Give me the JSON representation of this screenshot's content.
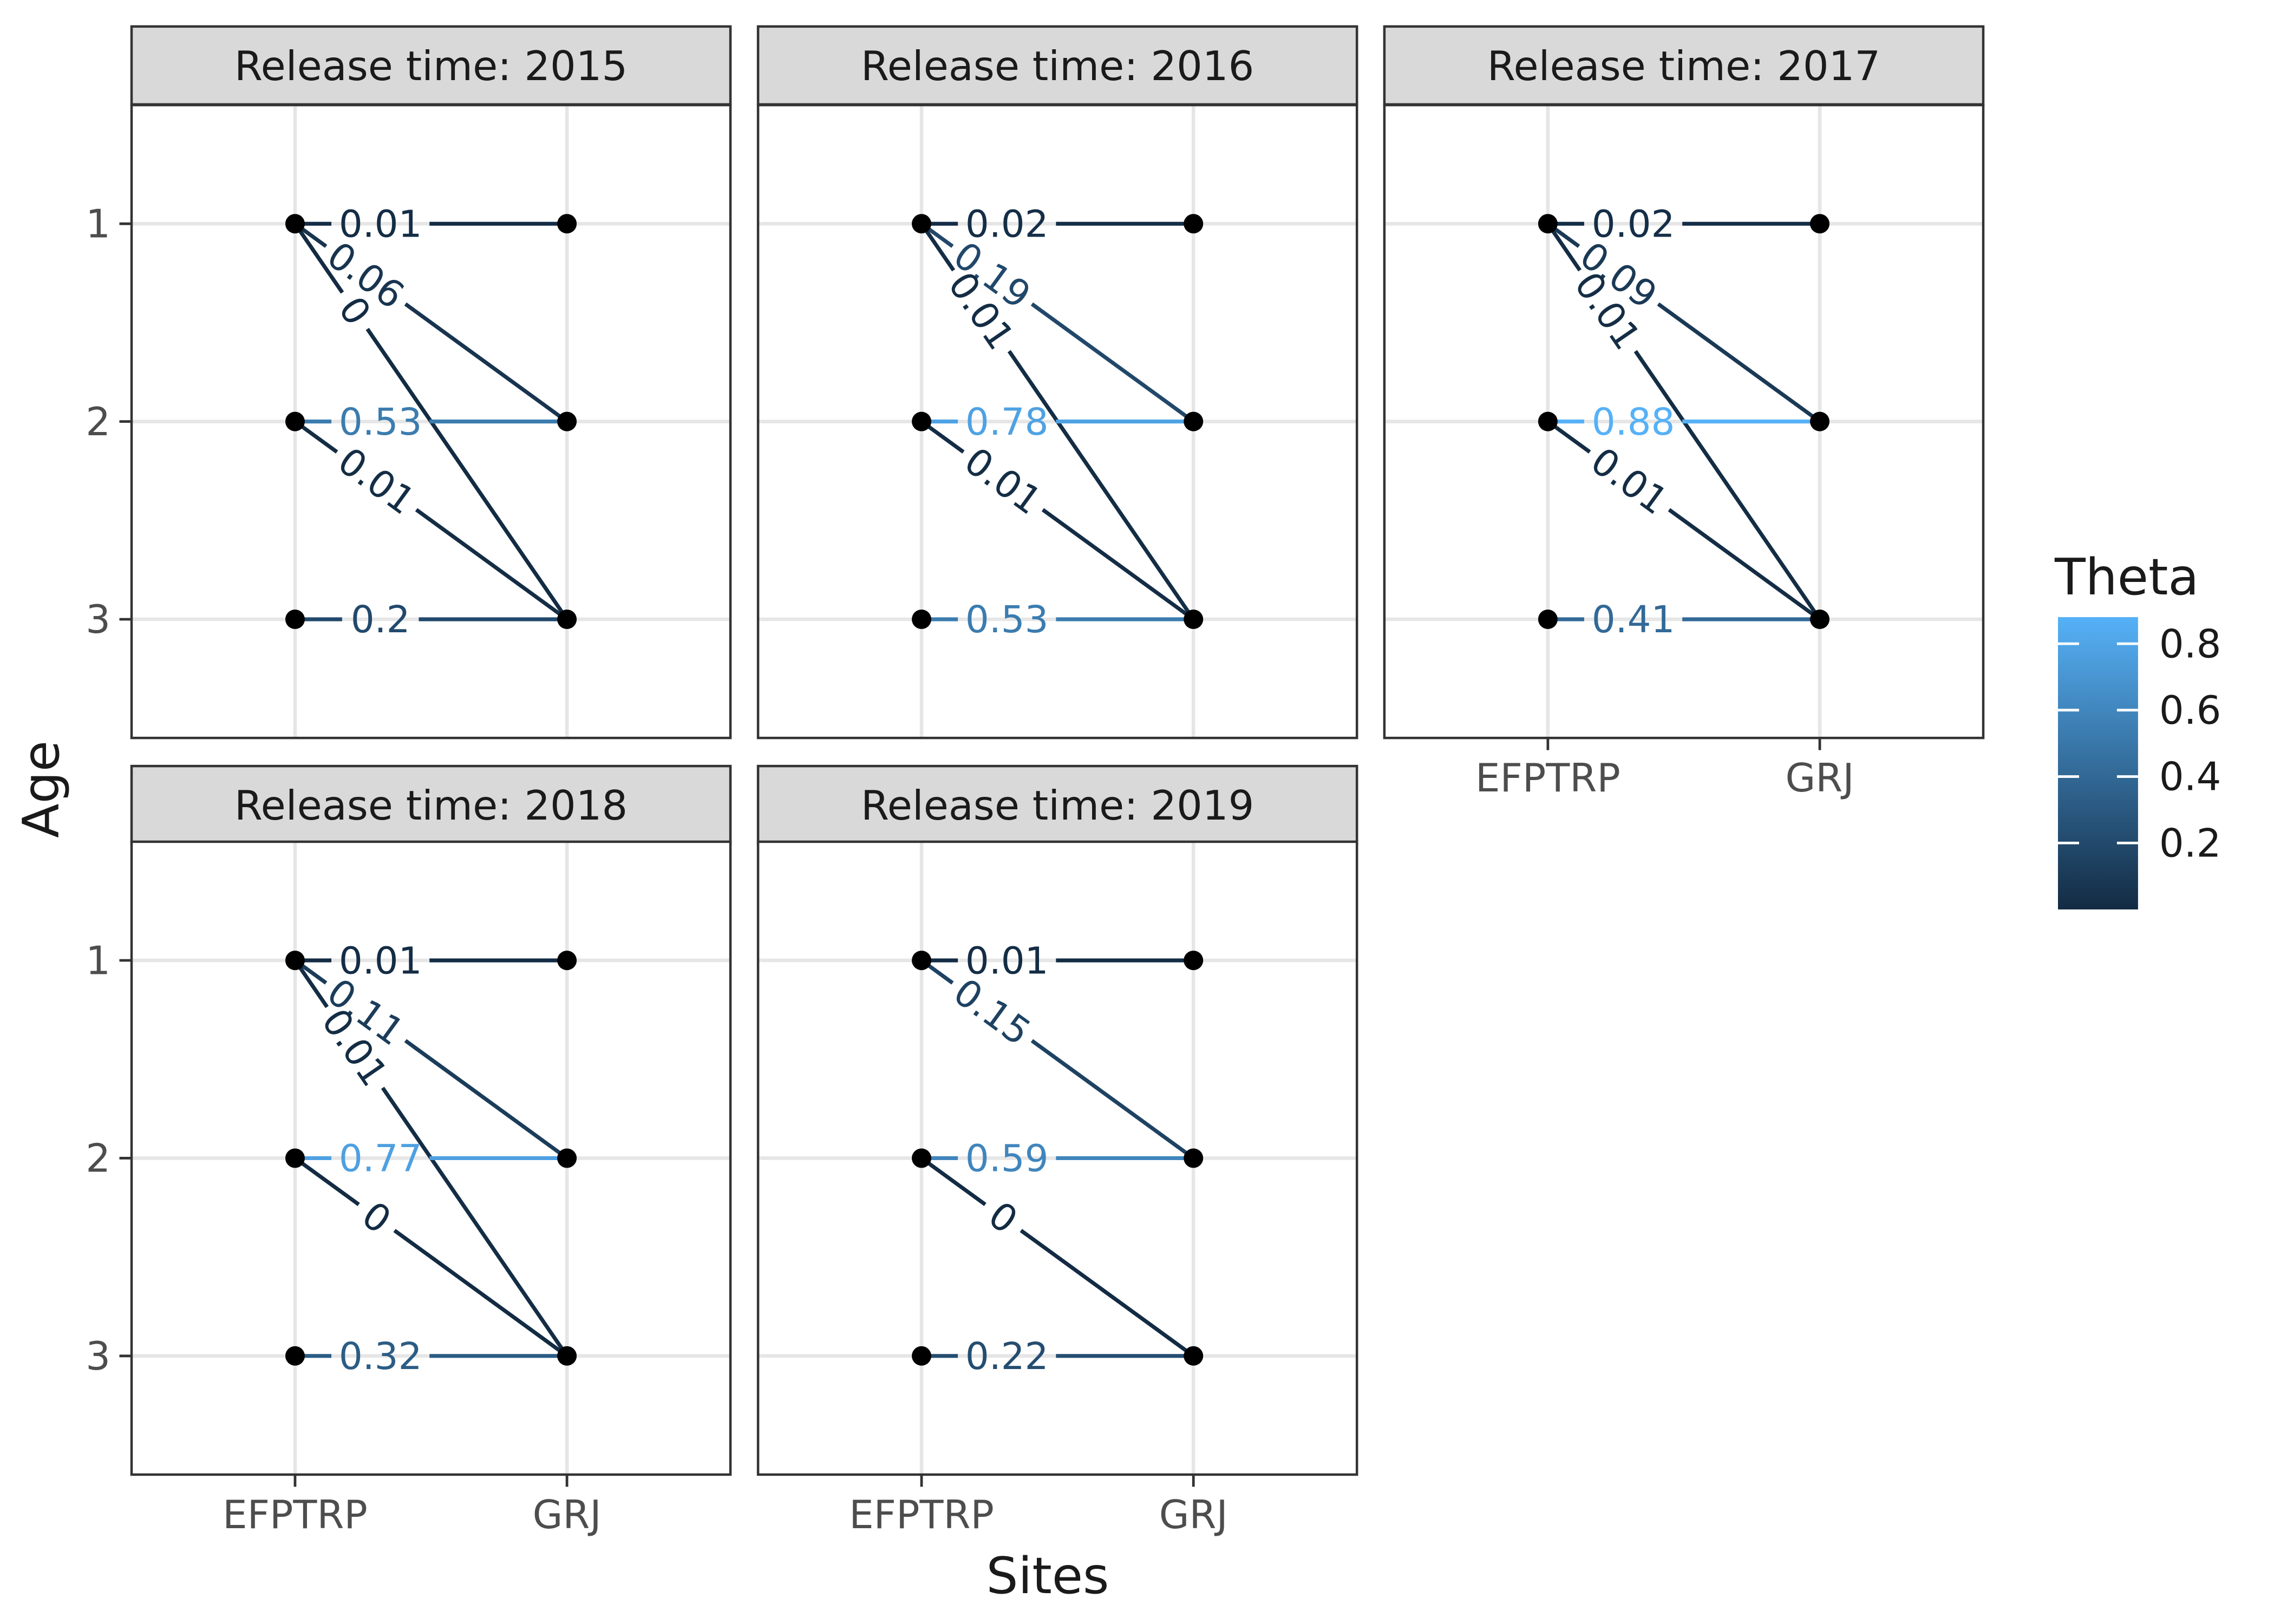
{
  "figure": {
    "x_axis_title": "Sites",
    "y_axis_title": "Age",
    "sites": [
      "EFPTRP",
      "GRJ"
    ],
    "ages": [
      "1",
      "2",
      "3"
    ]
  },
  "legend": {
    "title": "Theta",
    "domain": [
      0,
      0.88
    ],
    "color_low": "#132B43",
    "color_high": "#56B1F7",
    "ticks": [
      {
        "value": 0.8,
        "label": "0.8"
      },
      {
        "value": 0.6,
        "label": "0.6"
      },
      {
        "value": 0.4,
        "label": "0.4"
      },
      {
        "value": 0.2,
        "label": "0.2"
      }
    ]
  },
  "colors": {
    "strip_bg": "#d9d9d9",
    "strip_border": "#333333",
    "panel_border": "#333333",
    "panel_bg": "#ffffff",
    "grid": "#e6e6e6",
    "dot": "#000000",
    "axis_text": "#4d4d4d",
    "title_text": "#1a1a1a",
    "tick_mark": "#333333",
    "legend_tick": "#ffffff"
  },
  "chart_data": {
    "type": "line",
    "subtype": "faceted-slopegraph",
    "title": "",
    "xlabel": "Sites",
    "ylabel": "Age",
    "facet_variable": "Release time",
    "x": [
      "EFPTRP",
      "GRJ"
    ],
    "y_categories": [
      "1",
      "2",
      "3"
    ],
    "legend_title": "Theta",
    "facets": [
      {
        "label": "Release time: 2015",
        "year": "2015",
        "row": 0,
        "col": 0,
        "show_x_axis": false,
        "show_y_axis": true,
        "edges": [
          {
            "from_age": 1,
            "to_age": 1,
            "theta": 0.01,
            "label": "0.01"
          },
          {
            "from_age": 1,
            "to_age": 2,
            "theta": 0.06,
            "label": "0.06"
          },
          {
            "from_age": 1,
            "to_age": 3,
            "theta": 0.0,
            "label": "0"
          },
          {
            "from_age": 2,
            "to_age": 2,
            "theta": 0.53,
            "label": "0.53"
          },
          {
            "from_age": 2,
            "to_age": 3,
            "theta": 0.01,
            "label": "0.01"
          },
          {
            "from_age": 3,
            "to_age": 3,
            "theta": 0.2,
            "label": "0.2"
          }
        ]
      },
      {
        "label": "Release time: 2016",
        "year": "2016",
        "row": 0,
        "col": 1,
        "show_x_axis": false,
        "show_y_axis": false,
        "edges": [
          {
            "from_age": 1,
            "to_age": 1,
            "theta": 0.02,
            "label": "0.02"
          },
          {
            "from_age": 1,
            "to_age": 2,
            "theta": 0.19,
            "label": "0.19"
          },
          {
            "from_age": 1,
            "to_age": 3,
            "theta": 0.01,
            "label": "0.01"
          },
          {
            "from_age": 2,
            "to_age": 2,
            "theta": 0.78,
            "label": "0.78"
          },
          {
            "from_age": 2,
            "to_age": 3,
            "theta": 0.01,
            "label": "0.01"
          },
          {
            "from_age": 3,
            "to_age": 3,
            "theta": 0.53,
            "label": "0.53"
          }
        ]
      },
      {
        "label": "Release time: 2017",
        "year": "2017",
        "row": 0,
        "col": 2,
        "show_x_axis": true,
        "show_y_axis": false,
        "edges": [
          {
            "from_age": 1,
            "to_age": 1,
            "theta": 0.02,
            "label": "0.02"
          },
          {
            "from_age": 1,
            "to_age": 2,
            "theta": 0.09,
            "label": "0.09"
          },
          {
            "from_age": 1,
            "to_age": 3,
            "theta": 0.01,
            "label": "0.01"
          },
          {
            "from_age": 2,
            "to_age": 2,
            "theta": 0.88,
            "label": "0.88"
          },
          {
            "from_age": 2,
            "to_age": 3,
            "theta": 0.01,
            "label": "0.01"
          },
          {
            "from_age": 3,
            "to_age": 3,
            "theta": 0.41,
            "label": "0.41"
          }
        ]
      },
      {
        "label": "Release time: 2018",
        "year": "2018",
        "row": 1,
        "col": 0,
        "show_x_axis": true,
        "show_y_axis": true,
        "edges": [
          {
            "from_age": 1,
            "to_age": 1,
            "theta": 0.01,
            "label": "0.01"
          },
          {
            "from_age": 1,
            "to_age": 2,
            "theta": 0.11,
            "label": "0.11"
          },
          {
            "from_age": 1,
            "to_age": 3,
            "theta": 0.01,
            "label": "0.01"
          },
          {
            "from_age": 2,
            "to_age": 2,
            "theta": 0.77,
            "label": "0.77"
          },
          {
            "from_age": 2,
            "to_age": 3,
            "theta": 0.0,
            "label": "0"
          },
          {
            "from_age": 3,
            "to_age": 3,
            "theta": 0.32,
            "label": "0.32"
          }
        ]
      },
      {
        "label": "Release time: 2019",
        "year": "2019",
        "row": 1,
        "col": 1,
        "show_x_axis": true,
        "show_y_axis": false,
        "edges": [
          {
            "from_age": 1,
            "to_age": 1,
            "theta": 0.01,
            "label": "0.01"
          },
          {
            "from_age": 1,
            "to_age": 2,
            "theta": 0.15,
            "label": "0.15"
          },
          {
            "from_age": 2,
            "to_age": 2,
            "theta": 0.59,
            "label": "0.59"
          },
          {
            "from_age": 2,
            "to_age": 3,
            "theta": 0.0,
            "label": "0"
          },
          {
            "from_age": 3,
            "to_age": 3,
            "theta": 0.22,
            "label": "0.22"
          }
        ]
      }
    ]
  }
}
